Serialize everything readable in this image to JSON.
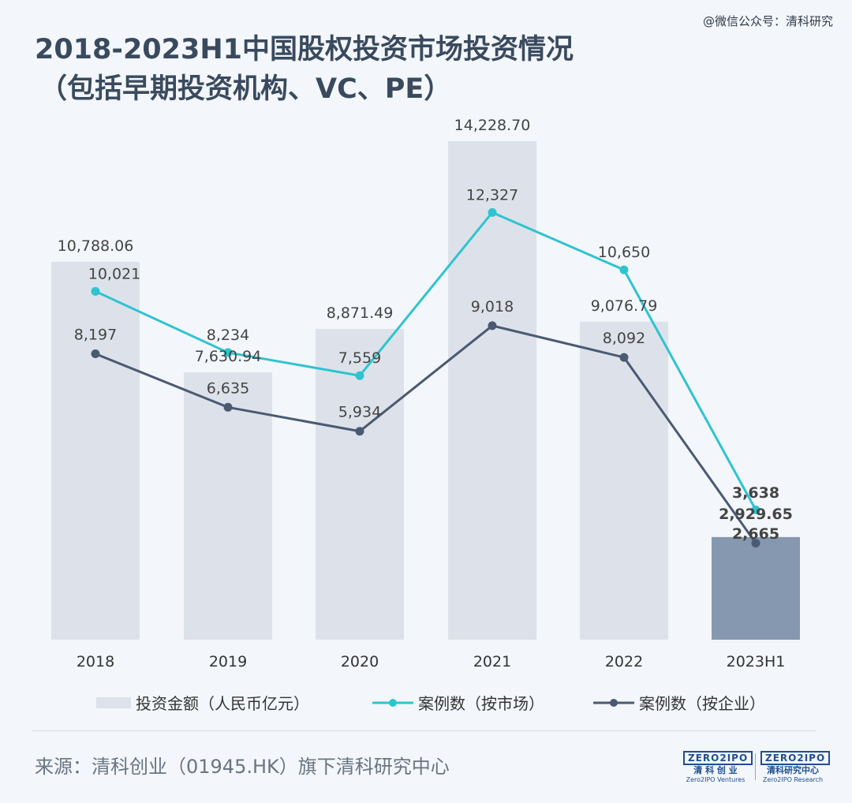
{
  "watermark": "@微信公众号：清科研究",
  "title_line1": "2018-2023H1中国股权投资市场投资情况",
  "title_line2": "（包括早期投资机构、VC、PE）",
  "chart_data": {
    "type": "bar",
    "categories": [
      "2018",
      "2019",
      "2020",
      "2021",
      "2022",
      "2023H1"
    ],
    "series": [
      {
        "name": "投资金额（人民币亿元）",
        "kind": "bar",
        "values": [
          10788.06,
          7630.94,
          8871.49,
          14228.7,
          9076.79,
          2929.65
        ],
        "labels": [
          "10,788.06",
          "7,630.94",
          "8,871.49",
          "14,228.70",
          "9,076.79",
          "2,929.65"
        ]
      },
      {
        "name": "案例数（按市场）",
        "kind": "line",
        "values": [
          10021,
          8234,
          7559,
          12327,
          10650,
          3638
        ],
        "labels": [
          "10,021",
          "8,234",
          "7,559",
          "12,327",
          "10,650",
          "3,638"
        ]
      },
      {
        "name": "案例数（按企业）",
        "kind": "line",
        "values": [
          8197,
          6635,
          5934,
          9018,
          8092,
          2665
        ],
        "labels": [
          "8,197",
          "6,635",
          "5,934",
          "9,018",
          "8,092",
          "2,665"
        ]
      }
    ],
    "colors": {
      "bar": "#dde2ea",
      "bar_highlight": "#8598b0",
      "line_market": "#2ec4cf",
      "line_company": "#4a5a72"
    }
  },
  "legend": {
    "bar": "投资金额（人民币亿元）",
    "market": "案例数（按市场）",
    "company": "案例数（按企业）"
  },
  "source": "来源：清科创业（01945.HK）旗下清科研究中心",
  "logos": [
    {
      "mark": "ZERO2IPO",
      "cn": "清 科 创 业",
      "en": "Zero2IPO Ventures"
    },
    {
      "mark": "ZERO2IPO",
      "cn": "清科研究中心",
      "en": "Zero2IPO Research"
    }
  ]
}
